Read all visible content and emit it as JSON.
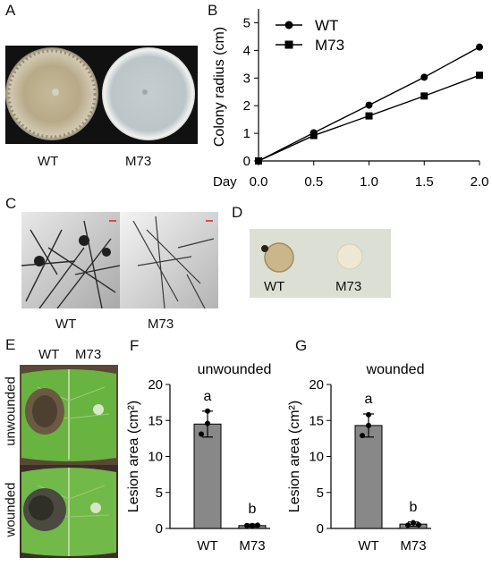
{
  "panels": {
    "a": {
      "letter": "A",
      "labels": [
        "WT",
        "M73"
      ]
    },
    "b": {
      "letter": "B"
    },
    "c": {
      "letter": "C",
      "labels": [
        "WT",
        "M73"
      ]
    },
    "d": {
      "letter": "D",
      "labels": [
        "WT",
        "M73"
      ]
    },
    "e": {
      "letter": "E",
      "col_labels": [
        "WT",
        "M73"
      ],
      "row_labels": [
        "unwounded",
        "wounded"
      ]
    },
    "f": {
      "letter": "F"
    },
    "g": {
      "letter": "G"
    }
  },
  "chart_data": [
    {
      "id": "B",
      "type": "line",
      "xlabel": "Day",
      "ylabel": "Colony radius (cm)",
      "x": [
        0.0,
        0.5,
        1.0,
        1.5,
        2.0
      ],
      "x_tick_labels": [
        "0.0",
        "0.5",
        "1.0",
        "1.5",
        "2.0"
      ],
      "y_ticks": [
        0,
        1,
        2,
        3,
        4,
        5
      ],
      "xlim": [
        0,
        2.0
      ],
      "ylim": [
        0,
        5.5
      ],
      "legend_position": "top-left",
      "series": [
        {
          "name": "WT",
          "marker": "circle",
          "values": [
            0,
            1.02,
            2.02,
            3.03,
            4.12
          ]
        },
        {
          "name": "M73",
          "marker": "square",
          "values": [
            0,
            0.92,
            1.63,
            2.35,
            3.1
          ]
        }
      ],
      "grid": false
    },
    {
      "id": "F",
      "type": "bar",
      "title": "unwounded",
      "ylabel": "Lesion area (cm²)",
      "categories": [
        "WT",
        "M73"
      ],
      "values": [
        14.5,
        0.4
      ],
      "error": [
        1.8,
        0.2
      ],
      "points": [
        [
          16.3,
          13.1,
          14.6
        ],
        [
          0.4,
          0.4,
          0.45
        ]
      ],
      "significance": [
        "a",
        "b"
      ],
      "y_ticks": [
        0,
        5,
        10,
        15,
        20
      ],
      "ylim": [
        0,
        20
      ],
      "grid": false
    },
    {
      "id": "G",
      "type": "bar",
      "title": "wounded",
      "ylabel": "Lesion area (cm²)",
      "categories": [
        "WT",
        "M73"
      ],
      "values": [
        14.3,
        0.6
      ],
      "error": [
        1.6,
        0.3
      ],
      "points": [
        [
          15.8,
          12.9,
          14.3
        ],
        [
          0.45,
          0.8,
          0.5
        ]
      ],
      "significance": [
        "a",
        "b"
      ],
      "y_ticks": [
        0,
        5,
        10,
        15,
        20
      ],
      "ylim": [
        0,
        20
      ],
      "grid": false
    }
  ]
}
